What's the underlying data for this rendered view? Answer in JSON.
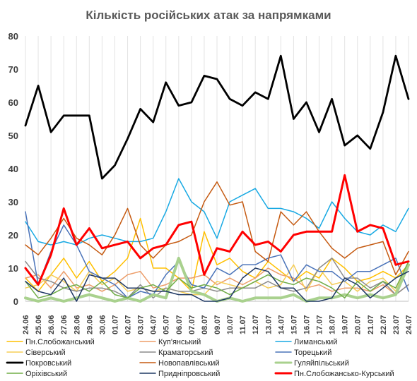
{
  "chart_data": {
    "type": "line",
    "title": "Кількість російських атак за напрямками",
    "ylim": [
      0,
      80
    ],
    "yticks": [
      "0",
      "10",
      "20",
      "30",
      "40",
      "50",
      "60",
      "70",
      "80"
    ],
    "grid": "vertical-gridlines",
    "legend_position": "bottom",
    "categories": [
      "24.06",
      "25.06",
      "26.06",
      "27.06",
      "28.06",
      "29.06",
      "30.06",
      "01.07",
      "02.07",
      "03.07",
      "04.07",
      "05.07",
      "06.07",
      "07.07",
      "08.07",
      "09.07",
      "10.07",
      "11.07",
      "12.07",
      "13.07",
      "14.07",
      "15.07",
      "16.07",
      "17.07",
      "18.07",
      "19.07",
      "20.07",
      "21.07",
      "22.07",
      "23.07",
      "24.07"
    ],
    "series": [
      {
        "name": "Пн.Слобожанський",
        "color": "#ffc000",
        "width": 1.5,
        "values": [
          7,
          3,
          8,
          13,
          7,
          12,
          6,
          9,
          13,
          25,
          10,
          10,
          7,
          3,
          21,
          11,
          13,
          9,
          7,
          12,
          9,
          6,
          9,
          7,
          13,
          10,
          6,
          7,
          9,
          7,
          11
        ]
      },
      {
        "name": "Куп'янський",
        "color": "#ed9d69",
        "width": 1.5,
        "values": [
          7,
          8,
          4,
          9,
          4,
          5,
          3,
          5,
          8,
          9,
          4,
          5,
          7,
          7,
          8,
          5,
          7,
          5,
          7,
          10,
          8,
          7,
          4,
          5,
          3,
          4,
          4,
          3,
          5,
          2,
          5
        ]
      },
      {
        "name": "Лиманський",
        "color": "#18a9e3",
        "width": 1.5,
        "values": [
          24,
          18,
          17,
          18,
          17,
          19,
          20,
          19,
          18,
          18,
          19,
          27,
          37,
          30,
          27,
          19,
          30,
          32,
          34,
          28,
          28,
          27,
          25,
          22,
          30,
          25,
          21,
          20,
          23,
          21,
          28
        ]
      },
      {
        "name": "Сіверський",
        "color": "#f5cd57",
        "width": 1.5,
        "values": [
          4,
          5,
          8,
          6,
          3,
          9,
          5,
          7,
          3,
          4,
          3,
          4,
          3,
          2,
          2,
          6,
          5,
          4,
          6,
          4,
          5,
          11,
          3,
          10,
          5,
          6,
          3,
          6,
          7,
          3,
          12
        ]
      },
      {
        "name": "Краматорський",
        "color": "#8c8c8c",
        "width": 1.5,
        "values": [
          12,
          7,
          6,
          4,
          3,
          4,
          4,
          3,
          1,
          5,
          1,
          4,
          3,
          3,
          4,
          3,
          4,
          4,
          4,
          6,
          4,
          3,
          4,
          10,
          13,
          7,
          7,
          4,
          6,
          2,
          5
        ]
      },
      {
        "name": "Торецький",
        "color": "#4a73b9",
        "width": 1.5,
        "values": [
          27,
          5,
          15,
          23,
          17,
          9,
          7,
          5,
          1,
          3,
          2,
          8,
          12,
          5,
          4,
          10,
          8,
          11,
          11,
          13,
          14,
          6,
          11,
          9,
          9,
          6,
          9,
          9,
          11,
          13,
          3
        ]
      },
      {
        "name": "Покровський",
        "color": "#000000",
        "width": 2.8,
        "values": [
          53,
          65,
          51,
          56,
          56,
          56,
          37,
          41,
          49,
          58,
          54,
          66,
          59,
          60,
          68,
          67,
          61,
          59,
          63,
          61,
          74,
          55,
          60,
          51,
          61,
          47,
          50,
          46,
          57,
          74,
          61
        ]
      },
      {
        "name": "Новопавлівський",
        "color": "#c55a11",
        "width": 1.5,
        "values": [
          17,
          14,
          19,
          25,
          19,
          17,
          14,
          20,
          28,
          17,
          13,
          17,
          18,
          20,
          30,
          36,
          29,
          30,
          15,
          12,
          27,
          23,
          27,
          21,
          16,
          13,
          16,
          17,
          18,
          8,
          15
        ]
      },
      {
        "name": "Гуляйпільський",
        "color": "#a9d18e",
        "width": 4.0,
        "values": [
          1,
          0,
          1,
          0,
          1,
          2,
          1,
          0,
          1,
          0,
          2,
          1,
          13,
          3,
          2,
          0,
          1,
          0,
          1,
          1,
          1,
          2,
          0,
          1,
          1,
          2,
          1,
          2,
          1,
          2,
          11
        ]
      },
      {
        "name": "Оріхівський",
        "color": "#70ad47",
        "width": 1.5,
        "values": [
          6,
          1,
          2,
          4,
          5,
          3,
          6,
          2,
          1,
          4,
          5,
          3,
          7,
          4,
          5,
          4,
          2,
          4,
          6,
          8,
          6,
          5,
          7,
          6,
          4,
          1,
          6,
          3,
          6,
          4,
          12
        ]
      },
      {
        "name": "Придніпровський",
        "color": "#1f3864",
        "width": 1.5,
        "values": [
          6,
          3,
          2,
          7,
          0,
          8,
          7,
          7,
          4,
          4,
          3,
          3,
          2,
          2,
          0,
          0,
          1,
          7,
          10,
          9,
          4,
          4,
          0,
          0,
          1,
          7,
          5,
          1,
          4,
          7,
          9
        ]
      },
      {
        "name": "Пн.Слобожансько-Курський",
        "color": "#ff0000",
        "width": 3.0,
        "values": [
          10,
          5,
          14,
          28,
          17,
          22,
          16,
          17,
          18,
          13,
          16,
          17,
          23,
          24,
          8,
          16,
          15,
          21,
          17,
          18,
          15,
          20,
          21,
          21,
          21,
          38,
          21,
          23,
          22,
          11,
          12
        ]
      }
    ]
  }
}
